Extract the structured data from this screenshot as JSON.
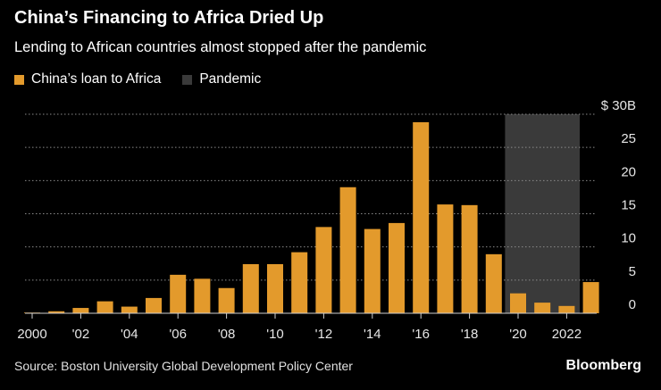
{
  "header": {
    "title": "China’s Financing to Africa Dried Up",
    "subtitle": "Lending to African countries almost stopped after the pandemic"
  },
  "legend": {
    "items": [
      {
        "label": "China’s loan to Africa",
        "color": "#e39a2c"
      },
      {
        "label": "Pandemic",
        "color": "#3a3a3a"
      }
    ]
  },
  "footer": {
    "source": "Source: Boston University Global Development Policy Center",
    "brand": "Bloomberg"
  },
  "chart_data": {
    "type": "bar",
    "title": "China’s Financing to Africa Dried Up",
    "subtitle": "Lending to African countries almost stopped after the pandemic",
    "unit": "$ billions",
    "categories": [
      2000,
      2001,
      2002,
      2003,
      2004,
      2005,
      2006,
      2007,
      2008,
      2009,
      2010,
      2011,
      2012,
      2013,
      2014,
      2015,
      2016,
      2017,
      2018,
      2019,
      2020,
      2021,
      2022,
      2023
    ],
    "series": [
      {
        "name": "China’s loan to Africa",
        "color": "#e39a2c",
        "values": [
          0.1,
          0.3,
          0.8,
          1.8,
          1.0,
          2.3,
          5.8,
          5.2,
          3.8,
          7.4,
          7.4,
          9.2,
          13.0,
          19.0,
          12.7,
          13.6,
          28.8,
          16.4,
          16.3,
          8.9,
          3.0,
          1.6,
          1.1,
          4.7
        ]
      }
    ],
    "highlight": {
      "name": "Pandemic",
      "x_range": [
        2020,
        2022
      ],
      "color": "#3a3a3a"
    },
    "ylim": [
      0,
      30
    ],
    "y_ticks": [
      {
        "value": 0,
        "label": "0"
      },
      {
        "value": 5,
        "label": "5"
      },
      {
        "value": 10,
        "label": "10"
      },
      {
        "value": 15,
        "label": "15"
      },
      {
        "value": 20,
        "label": "20"
      },
      {
        "value": 25,
        "label": "25"
      },
      {
        "value": 30,
        "label": "$ 30B"
      }
    ],
    "x_ticks": [
      {
        "value": 2000,
        "label": "2000"
      },
      {
        "value": 2002,
        "label": "'02"
      },
      {
        "value": 2004,
        "label": "'04"
      },
      {
        "value": 2006,
        "label": "'06"
      },
      {
        "value": 2008,
        "label": "'08"
      },
      {
        "value": 2010,
        "label": "'10"
      },
      {
        "value": 2012,
        "label": "'12"
      },
      {
        "value": 2014,
        "label": "'14"
      },
      {
        "value": 2016,
        "label": "'16"
      },
      {
        "value": 2018,
        "label": "'18"
      },
      {
        "value": 2020,
        "label": "'20"
      },
      {
        "value": 2022,
        "label": "2022"
      }
    ],
    "grid": "horizontal dotted",
    "legend_position": "top-left"
  }
}
